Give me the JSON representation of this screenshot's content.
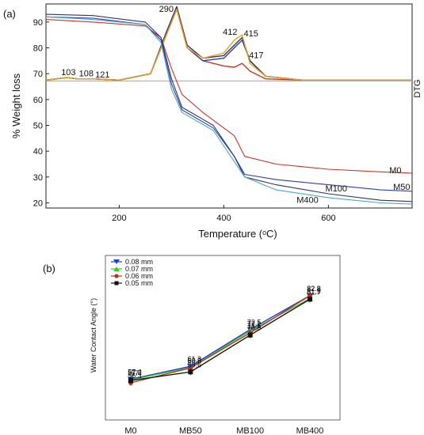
{
  "chart_data": [
    {
      "panel_label": "(a)",
      "type": "line",
      "xlabel": "Temperature (ᵒC)",
      "ylabel": "% Weight loss",
      "y2label": "DTG",
      "xlim": [
        60,
        760
      ],
      "ylim": [
        18,
        97
      ],
      "x_ticks": [
        200,
        400,
        600
      ],
      "y_ticks": [
        20,
        30,
        40,
        50,
        60,
        70,
        80,
        90
      ],
      "tga_series": [
        {
          "name": "M0",
          "color": "#c0392b",
          "x": [
            60,
            150,
            250,
            280,
            300,
            320,
            360,
            420,
            440,
            500,
            600,
            700,
            760
          ],
          "y": [
            91,
            90,
            88.5,
            84,
            72,
            62,
            55,
            46,
            38,
            35,
            33,
            32,
            31.5
          ]
        },
        {
          "name": "M50",
          "color": "#2e3fa8",
          "x": [
            60,
            150,
            250,
            280,
            300,
            320,
            380,
            420,
            440,
            500,
            600,
            700,
            760
          ],
          "y": [
            92,
            91.5,
            89,
            83,
            66,
            56,
            49,
            38,
            31,
            29,
            27,
            25,
            24.5
          ]
        },
        {
          "name": "M100",
          "color": "#333366",
          "x": [
            60,
            150,
            250,
            280,
            300,
            320,
            380,
            420,
            440,
            500,
            600,
            700,
            760
          ],
          "y": [
            93,
            92.5,
            90,
            84,
            68,
            57,
            50,
            38,
            30,
            27,
            23.5,
            21,
            20.5
          ]
        },
        {
          "name": "M400",
          "color": "#4aa6c8",
          "x": [
            60,
            150,
            250,
            280,
            300,
            320,
            380,
            420,
            440,
            500,
            600,
            700,
            760
          ],
          "y": [
            92,
            91,
            89,
            82,
            64,
            55,
            48,
            36,
            30,
            25,
            22,
            20,
            19.5
          ]
        }
      ],
      "dtg_series": [
        {
          "name": "M0",
          "color": "#c0392b",
          "x": [
            60,
            100,
            120,
            150,
            200,
            260,
            290,
            310,
            330,
            360,
            400,
            420,
            435,
            450,
            480,
            550,
            760
          ],
          "y": [
            67.5,
            68.5,
            68,
            68,
            67.5,
            70,
            85,
            95,
            80,
            75,
            73,
            72.5,
            74,
            71,
            68,
            67.5,
            67.5
          ]
        },
        {
          "name": "M50",
          "color": "#2e3fa8",
          "x": [
            60,
            100,
            120,
            150,
            200,
            260,
            290,
            310,
            330,
            360,
            400,
            420,
            435,
            450,
            480,
            550,
            760
          ],
          "y": [
            67.5,
            68.5,
            68,
            68,
            67.5,
            70,
            85,
            95,
            80,
            75,
            76,
            80,
            83,
            75,
            69,
            67.5,
            67.5
          ]
        },
        {
          "name": "M100",
          "color": "#333366",
          "x": [
            60,
            100,
            120,
            150,
            200,
            260,
            290,
            310,
            330,
            360,
            400,
            420,
            435,
            450,
            480,
            550,
            760
          ],
          "y": [
            67.5,
            68.5,
            68,
            68,
            67.5,
            70,
            86,
            96,
            81,
            76,
            77,
            81,
            84,
            75,
            69,
            67.5,
            67.5
          ]
        },
        {
          "name": "M400",
          "color": "#e3a21a",
          "x": [
            60,
            100,
            120,
            150,
            200,
            260,
            290,
            310,
            330,
            360,
            400,
            420,
            435,
            450,
            480,
            550,
            760
          ],
          "y": [
            67.5,
            68.5,
            68,
            68,
            67.5,
            70,
            85,
            95,
            80,
            76,
            78,
            83,
            85,
            74,
            69,
            67.5,
            67.5
          ]
        }
      ],
      "baseline_y": 67.2,
      "peak_labels": [
        {
          "text": "290",
          "x": 290,
          "y": 94
        },
        {
          "text": "412",
          "x": 412,
          "y": 85
        },
        {
          "text": "415",
          "x": 452,
          "y": 84.5
        },
        {
          "text": "417",
          "x": 462,
          "y": 76
        },
        {
          "text": "103",
          "x": 103,
          "y": 69.5
        },
        {
          "text": "108",
          "x": 137,
          "y": 69
        },
        {
          "text": "121",
          "x": 168,
          "y": 68.5
        }
      ],
      "end_labels": [
        {
          "text": "M0",
          "x": 728,
          "y": 31.5
        },
        {
          "text": "M50",
          "x": 740,
          "y": 25
        },
        {
          "text": "M100",
          "x": 615,
          "y": 24.5
        },
        {
          "text": "M400",
          "x": 560,
          "y": 20
        }
      ]
    },
    {
      "panel_label": "(b)",
      "type": "line",
      "categories": [
        "M0",
        "MB50",
        "MB100",
        "MB400"
      ],
      "ylabel": "Water Contact Angle (°)",
      "ylim": [
        45,
        95
      ],
      "series": [
        {
          "name": "0.08 mm",
          "color": "#1f3fd6",
          "marker": "triangle-down",
          "values": [
            57.4,
            61.3,
            72.5,
            82.8
          ]
        },
        {
          "name": "0.07 mm",
          "color": "#44c72c",
          "marker": "triangle-up",
          "values": [
            57.2,
            60.9,
            72.1,
            81.9
          ]
        },
        {
          "name": "0.06 mm",
          "color": "#b8361c",
          "marker": "circle",
          "values": [
            56.3,
            60.8,
            71.5,
            82.8
          ]
        },
        {
          "name": "0.05 mm",
          "color": "#111111",
          "marker": "square",
          "values": [
            57,
            59.6,
            70.8,
            81.7
          ]
        }
      ],
      "legend_position": "top-left"
    }
  ]
}
